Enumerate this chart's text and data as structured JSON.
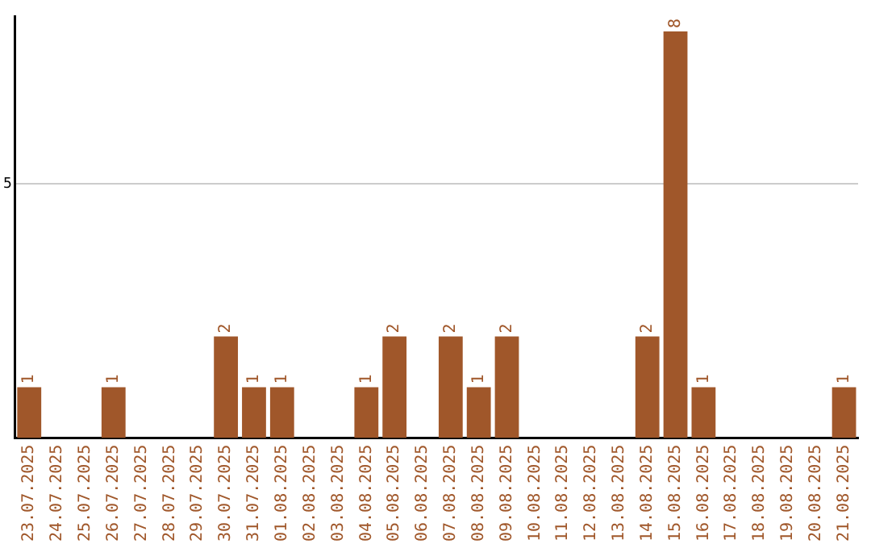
{
  "chart_data": {
    "type": "bar",
    "categories": [
      "23.07.2025",
      "24.07.2025",
      "25.07.2025",
      "26.07.2025",
      "27.07.2025",
      "28.07.2025",
      "29.07.2025",
      "30.07.2025",
      "31.07.2025",
      "01.08.2025",
      "02.08.2025",
      "03.08.2025",
      "04.08.2025",
      "05.08.2025",
      "06.08.2025",
      "07.08.2025",
      "08.08.2025",
      "09.08.2025",
      "10.08.2025",
      "11.08.2025",
      "12.08.2025",
      "13.08.2025",
      "14.08.2025",
      "15.08.2025",
      "16.08.2025",
      "17.08.2025",
      "18.08.2025",
      "19.08.2025",
      "20.08.2025",
      "21.08.2025"
    ],
    "values": [
      1,
      0,
      0,
      1,
      0,
      0,
      0,
      2,
      1,
      1,
      0,
      0,
      1,
      2,
      0,
      2,
      1,
      2,
      0,
      0,
      0,
      0,
      2,
      8,
      1,
      0,
      0,
      0,
      0,
      1
    ],
    "value_labels": [
      "1",
      null,
      null,
      "1",
      null,
      null,
      null,
      "2",
      "1",
      "1",
      null,
      null,
      "1",
      "2",
      null,
      "2",
      "1",
      "2",
      null,
      null,
      null,
      null,
      "2",
      "8",
      "1",
      null,
      null,
      null,
      null,
      "1"
    ],
    "color": "#a0572a",
    "ylim": [
      0,
      8.3
    ],
    "yticks": [
      5
    ],
    "grid": "y",
    "legend": false
  }
}
